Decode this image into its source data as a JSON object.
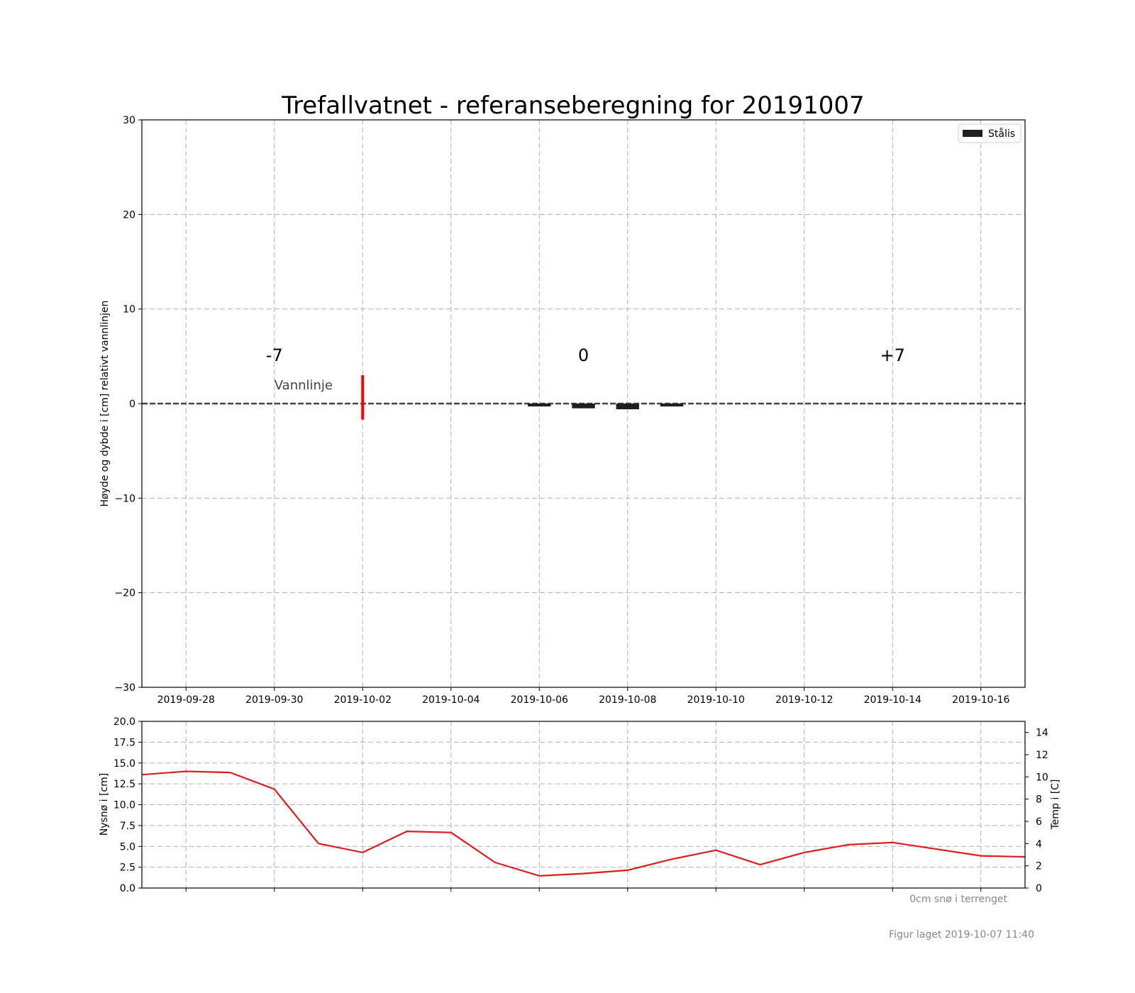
{
  "chart_data": [
    {
      "type": "bar",
      "title": "Trefallvatnet - referanseberegning for 20191007",
      "ylabel": "Høyde og dybde i [cm] relativt vannlinjen",
      "xlabel": "",
      "x_range": [
        "2019-09-27",
        "2019-10-17"
      ],
      "ylim": [
        -30,
        30
      ],
      "y_ticks": [
        30,
        20,
        10,
        0,
        -10,
        -20,
        -30
      ],
      "y_tick_labels": [
        "30",
        "20",
        "10",
        "0",
        "−10",
        "−20",
        "−30"
      ],
      "x_ticks": [
        "2019-09-28",
        "2019-09-30",
        "2019-10-02",
        "2019-10-04",
        "2019-10-06",
        "2019-10-08",
        "2019-10-10",
        "2019-10-12",
        "2019-10-14",
        "2019-10-16"
      ],
      "grid": true,
      "legend": {
        "placement": "top-right",
        "entries": [
          "Stålis"
        ]
      },
      "series": [
        {
          "name": "Stålis",
          "color": "#1f1f1f",
          "points": [
            {
              "date": "2019-10-06",
              "top": 0.0,
              "bottom": -0.3
            },
            {
              "date": "2019-10-07",
              "top": 0.0,
              "bottom": -0.5
            },
            {
              "date": "2019-10-08",
              "top": 0.0,
              "bottom": -0.6
            },
            {
              "date": "2019-10-09",
              "top": 0.0,
              "bottom": -0.3
            }
          ]
        }
      ],
      "marker": {
        "date": "2019-10-02",
        "top": 3.0,
        "bottom": -1.7,
        "color": "#ff0000"
      },
      "waterline": {
        "value": 0,
        "label": "Vannlinje",
        "label_date": "2019-09-30",
        "label_y": 1.5
      },
      "annotations": [
        {
          "text": "-7",
          "date": "2019-09-30",
          "y": 4.5
        },
        {
          "text": "0",
          "date": "2019-10-07",
          "y": 4.5
        },
        {
          "text": "+7",
          "date": "2019-10-14",
          "y": 4.5
        }
      ]
    },
    {
      "type": "line",
      "ylabel": "Nysnø i [cm]",
      "ylim": [
        0,
        20
      ],
      "y_ticks": [
        0.0,
        2.5,
        5.0,
        7.5,
        10.0,
        12.5,
        15.0,
        17.5,
        20.0
      ],
      "y_tick_labels": [
        "0.0",
        "2.5",
        "5.0",
        "7.5",
        "10.0",
        "12.5",
        "15.0",
        "17.5",
        "20.0"
      ],
      "y2label": "Temp i [C]",
      "y2lim": [
        0,
        15
      ],
      "y2_ticks": [
        0,
        2,
        4,
        6,
        8,
        10,
        12,
        14
      ],
      "y2_tick_labels": [
        "0",
        "2",
        "4",
        "6",
        "8",
        "10",
        "12",
        "14"
      ],
      "grid": true,
      "series": [
        {
          "name": "",
          "axis": "right",
          "color": "#dd1c1c",
          "x": [
            "2019-09-27",
            "2019-09-28",
            "2019-09-29",
            "2019-09-30",
            "2019-10-01",
            "2019-10-02",
            "2019-10-03",
            "2019-10-04",
            "2019-10-05",
            "2019-10-06",
            "2019-10-07",
            "2019-10-08",
            "2019-10-09",
            "2019-10-10",
            "2019-10-11",
            "2019-10-12",
            "2019-10-13",
            "2019-10-14",
            "2019-10-15",
            "2019-10-16",
            "2019-10-17"
          ],
          "y": [
            10.2,
            10.5,
            10.4,
            8.9,
            4.0,
            3.2,
            5.1,
            5.0,
            2.3,
            1.1,
            1.3,
            1.6,
            2.6,
            3.4,
            2.1,
            3.2,
            3.9,
            4.1,
            3.5,
            2.9,
            2.8
          ]
        }
      ],
      "snow_note": "0cm snø i terrenget"
    }
  ],
  "footer": {
    "created": "Figur laget 2019-10-07 11:40"
  }
}
